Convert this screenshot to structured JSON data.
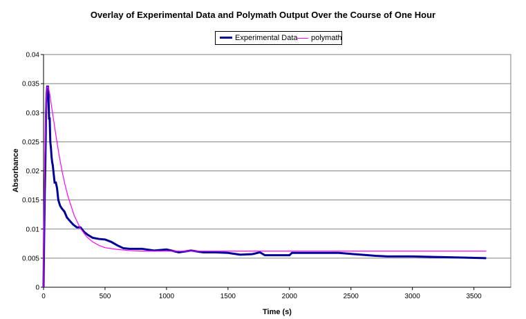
{
  "chart_data": {
    "type": "line",
    "title": "Overlay of Experimental Data and Polymath Output Over the Course of One Hour",
    "xlabel": "Time (s)",
    "ylabel": "Absorbance",
    "xlim": [
      0,
      3800
    ],
    "ylim": [
      0,
      0.04
    ],
    "x_ticks": [
      "0",
      "500",
      "1000",
      "1500",
      "2000",
      "2500",
      "3000",
      "3500"
    ],
    "y_ticks": [
      "0",
      "0.005",
      "0.01",
      "0.015",
      "0.02",
      "0.025",
      "0.03",
      "0.035",
      "0.04"
    ],
    "grid": "horizontal",
    "legend_position": "top-center",
    "series": [
      {
        "name": "Experimental Data",
        "color": "#000099",
        "x": [
          0,
          5,
          10,
          15,
          20,
          25,
          30,
          35,
          40,
          45,
          50,
          55,
          60,
          65,
          70,
          75,
          80,
          90,
          100,
          110,
          120,
          135,
          150,
          170,
          190,
          210,
          240,
          270,
          300,
          330,
          360,
          400,
          450,
          500,
          550,
          600,
          650,
          700,
          800,
          900,
          1000,
          1100,
          1200,
          1300,
          1400,
          1500,
          1600,
          1700,
          1760,
          1800,
          2000,
          2020,
          2200,
          2400,
          2640,
          2700,
          2800,
          3000,
          3200,
          3400,
          3600
        ],
        "values": [
          0.0,
          0.009,
          0.016,
          0.022,
          0.03,
          0.033,
          0.0345,
          0.0345,
          0.033,
          0.029,
          0.029,
          0.025,
          0.024,
          0.0225,
          0.0215,
          0.021,
          0.02,
          0.018,
          0.018,
          0.017,
          0.015,
          0.014,
          0.0135,
          0.013,
          0.012,
          0.0115,
          0.0108,
          0.0103,
          0.0103,
          0.0095,
          0.009,
          0.0085,
          0.0083,
          0.0082,
          0.0078,
          0.0072,
          0.0067,
          0.0066,
          0.0066,
          0.0063,
          0.0065,
          0.006,
          0.0063,
          0.006,
          0.006,
          0.0059,
          0.0056,
          0.0057,
          0.006,
          0.0055,
          0.0055,
          0.0059,
          0.0059,
          0.0059,
          0.0055,
          0.0054,
          0.0053,
          0.0053,
          0.0052,
          0.0051,
          0.005
        ]
      },
      {
        "name": "polymath",
        "color": "#ff00ff",
        "x": [
          0,
          10,
          20,
          30,
          40,
          50,
          60,
          80,
          100,
          125,
          150,
          175,
          200,
          250,
          300,
          350,
          400,
          450,
          500,
          600,
          700,
          800,
          1000,
          1500,
          2000,
          2500,
          3000,
          3600
        ],
        "values": [
          0.0,
          0.022,
          0.031,
          0.0345,
          0.0343,
          0.0333,
          0.0318,
          0.029,
          0.0262,
          0.0229,
          0.02,
          0.0176,
          0.0155,
          0.0123,
          0.0101,
          0.0087,
          0.0078,
          0.0072,
          0.0068,
          0.0065,
          0.0063,
          0.0062,
          0.0062,
          0.0062,
          0.0062,
          0.0062,
          0.0062,
          0.0062
        ]
      }
    ]
  }
}
